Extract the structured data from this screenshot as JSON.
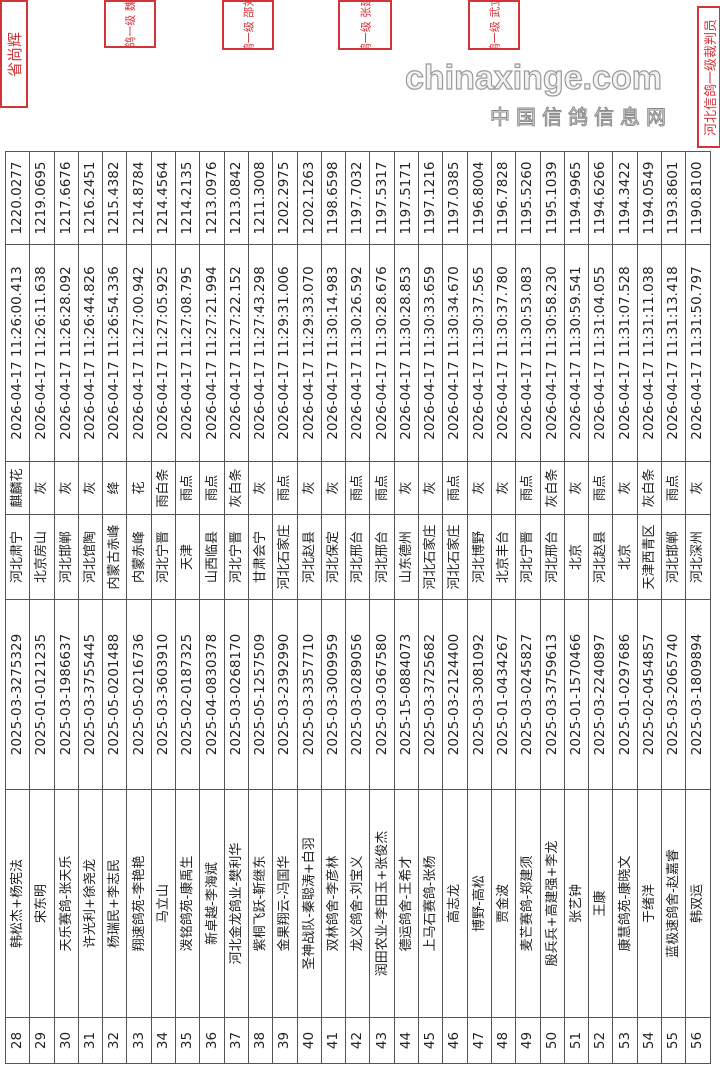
{
  "stamps": [
    {
      "text": "省尚辉"
    },
    {
      "text": "鸽一级 魏"
    },
    {
      "text": "鸽一级 邵刘"
    },
    {
      "text": "鸽一级 张建"
    },
    {
      "text": "鸽一级 武立"
    },
    {
      "text": "河北信鸽一级裁判员"
    }
  ],
  "stamp_color": "#d4333a",
  "watermark": {
    "site": "chinaxinge.com",
    "name": "中国信鸽信息网"
  },
  "rows": [
    {
      "rank": "28",
      "name": "韩松杰+杨宪法",
      "ring": "2025-03-3275329",
      "region": "河北肃宁",
      "color": "麒麟花",
      "time": "2026-04-17 11:26:00.413",
      "speed": "1220.0277"
    },
    {
      "rank": "29",
      "name": "宋东明",
      "ring": "2025-01-0121235",
      "region": "北京房山",
      "color": "灰",
      "time": "2026-04-17 11:26:11.638",
      "speed": "1219.0695"
    },
    {
      "rank": "30",
      "name": "天乐赛鸽-张天乐",
      "ring": "2025-03-1986637",
      "region": "河北邯郸",
      "color": "灰",
      "time": "2026-04-17 11:26:28.092",
      "speed": "1217.6676"
    },
    {
      "rank": "31",
      "name": "许光利+徐尧龙",
      "ring": "2025-03-3755445",
      "region": "河北馆陶",
      "color": "灰",
      "time": "2026-04-17 11:26:44.826",
      "speed": "1216.2451"
    },
    {
      "rank": "32",
      "name": "杨瑞民+李志民",
      "ring": "2025-05-0201488",
      "region": "内蒙古赤峰",
      "color": "绛",
      "time": "2026-04-17 11:26:54.336",
      "speed": "1215.4382"
    },
    {
      "rank": "33",
      "name": "翔速鸽苑-李艳艳",
      "ring": "2025-05-0216736",
      "region": "内蒙赤峰",
      "color": "花",
      "time": "2026-04-17 11:27:00.942",
      "speed": "1214.8784"
    },
    {
      "rank": "34",
      "name": "马立山",
      "ring": "2025-03-3603910",
      "region": "河北宁晋",
      "color": "雨白条",
      "time": "2026-04-17 11:27:05.925",
      "speed": "1214.4564"
    },
    {
      "rank": "35",
      "name": "泼铭鸽苑-康禹生",
      "ring": "2025-02-0187325",
      "region": "天津",
      "color": "雨点",
      "time": "2026-04-17 11:27:08.795",
      "speed": "1214.2135"
    },
    {
      "rank": "36",
      "name": "新卓越-李海斌",
      "ring": "2025-04-0830378",
      "region": "山西临县",
      "color": "雨点",
      "time": "2026-04-17 11:27:21.994",
      "speed": "1213.0976"
    },
    {
      "rank": "37",
      "name": "河北金龙鸽业-樊利华",
      "ring": "2025-03-0268170",
      "region": "河北宁晋",
      "color": "灰白条",
      "time": "2026-04-17 11:27:22.152",
      "speed": "1213.0842"
    },
    {
      "rank": "38",
      "name": "紫桐飞跃-靳继东",
      "ring": "2025-05-1257509",
      "region": "甘肃会宁",
      "color": "灰",
      "time": "2026-04-17 11:27:43.298",
      "speed": "1211.3008"
    },
    {
      "rank": "39",
      "name": "金果翔云-冯国华",
      "ring": "2025-03-2392990",
      "region": "河北石家庄",
      "color": "雨点",
      "time": "2026-04-17 11:29:31.006",
      "speed": "1202.2975"
    },
    {
      "rank": "40",
      "name": "圣神战队-秦聪涛+白羽",
      "ring": "2025-03-3357710",
      "region": "河北赵县",
      "color": "灰",
      "time": "2026-04-17 11:29:33.070",
      "speed": "1202.1263"
    },
    {
      "rank": "41",
      "name": "双林鸽舍-李彦林",
      "ring": "2025-03-3009959",
      "region": "河北保定",
      "color": "灰",
      "time": "2026-04-17 11:30:14.983",
      "speed": "1198.6598"
    },
    {
      "rank": "42",
      "name": "龙义鸽舍-刘宝义",
      "ring": "2025-03-0289056",
      "region": "河北邢台",
      "color": "雨点",
      "time": "2026-04-17 11:30:26.592",
      "speed": "1197.7032"
    },
    {
      "rank": "43",
      "name": "润田农业-李田玉+张俊杰",
      "ring": "2025-03-0367580",
      "region": "河北邢台",
      "color": "雨点",
      "time": "2026-04-17 11:30:28.676",
      "speed": "1197.5317"
    },
    {
      "rank": "44",
      "name": "德运鸽舍-王希才",
      "ring": "2025-15-0884073",
      "region": "山东德州",
      "color": "灰",
      "time": "2026-04-17 11:30:28.853",
      "speed": "1197.5171"
    },
    {
      "rank": "45",
      "name": "上马石赛鸽-张杨",
      "ring": "2025-03-3725682",
      "region": "河北石家庄",
      "color": "灰",
      "time": "2026-04-17 11:30:33.659",
      "speed": "1197.1216"
    },
    {
      "rank": "46",
      "name": "高志龙",
      "ring": "2025-03-2124400",
      "region": "河北石家庄",
      "color": "雨点",
      "time": "2026-04-17 11:30:34.670",
      "speed": "1197.0385"
    },
    {
      "rank": "47",
      "name": "博野-高松",
      "ring": "2025-03-3081092",
      "region": "河北博野",
      "color": "灰",
      "time": "2026-04-17 11:30:37.565",
      "speed": "1196.8004"
    },
    {
      "rank": "48",
      "name": "贾金波",
      "ring": "2025-01-0434267",
      "region": "北京丰台",
      "color": "灰",
      "time": "2026-04-17 11:30:37.780",
      "speed": "1196.7828"
    },
    {
      "rank": "49",
      "name": "麦芒赛鸽-郑建须",
      "ring": "2025-03-0245827",
      "region": "河北宁晋",
      "color": "雨点",
      "time": "2026-04-17 11:30:53.083",
      "speed": "1195.5260"
    },
    {
      "rank": "50",
      "name": "殷兵兵+高建强+李龙",
      "ring": "2025-03-3759613",
      "region": "河北邢台",
      "color": "灰白条",
      "time": "2026-04-17 11:30:58.230",
      "speed": "1195.1039"
    },
    {
      "rank": "51",
      "name": "张艺钟",
      "ring": "2025-01-1570466",
      "region": "北京",
      "color": "灰",
      "time": "2026-04-17 11:30:59.541",
      "speed": "1194.9965"
    },
    {
      "rank": "52",
      "name": "王康",
      "ring": "2025-03-2240897",
      "region": "河北赵县",
      "color": "雨点",
      "time": "2026-04-17 11:31:04.055",
      "speed": "1194.6266"
    },
    {
      "rank": "53",
      "name": "康慧鸽苑-康晓文",
      "ring": "2025-01-0297686",
      "region": "北京",
      "color": "灰",
      "time": "2026-04-17 11:31:07.528",
      "speed": "1194.3422"
    },
    {
      "rank": "54",
      "name": "于绪洋",
      "ring": "2025-02-0454857",
      "region": "天津西青区",
      "color": "灰白条",
      "time": "2026-04-17 11:31:11.038",
      "speed": "1194.0549"
    },
    {
      "rank": "55",
      "name": "蓝极速鸽舍-赵嘉睿",
      "ring": "2025-03-2065740",
      "region": "河北邯郸",
      "color": "雨点",
      "time": "2026-04-17 11:31:13.418",
      "speed": "1193.8601"
    },
    {
      "rank": "56",
      "name": "韩双运",
      "ring": "2025-03-1809894",
      "region": "河北深州",
      "color": "灰",
      "time": "2026-04-17 11:31:50.797",
      "speed": "1190.8100"
    }
  ]
}
